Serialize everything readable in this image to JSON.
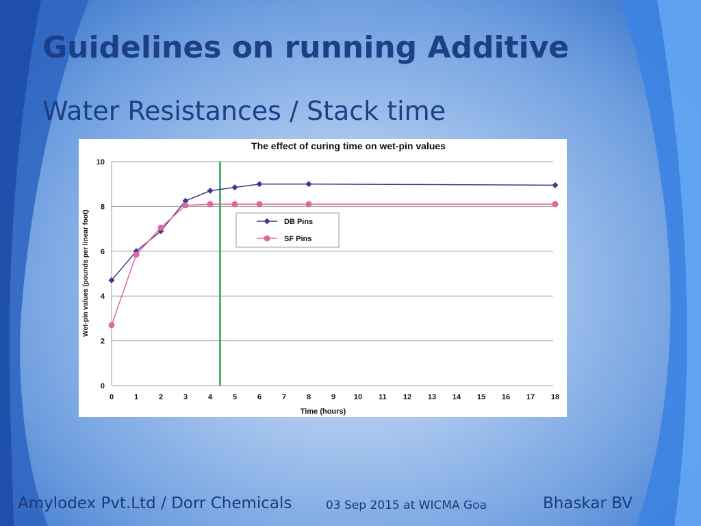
{
  "slide": {
    "title": "Guidelines on running Additive",
    "subtitle": "Water Resistances / Stack time"
  },
  "footer": {
    "company": "Amylodex Pvt.Ltd  / Dorr Chemicals",
    "event": "03 Sep 2015 at WICMA  Goa",
    "author": "Bhaskar BV"
  },
  "colors": {
    "title": "#1c3f86",
    "series_db": "#3b3a8c",
    "series_sf": "#e0669b",
    "marker_line": "#2aa44a"
  },
  "chart_data": {
    "type": "line",
    "title": "The effect of curing time on wet-pin values",
    "xlabel": "Time (hours)",
    "ylabel": "Wet-pin values (pounds per linear foot)",
    "categories": [
      "0",
      "1",
      "2",
      "3",
      "4",
      "5",
      "6",
      "7",
      "8",
      "9",
      "10",
      "11",
      "12",
      "13",
      "14",
      "15",
      "16",
      "17",
      "18"
    ],
    "yticks": [
      "0",
      "2",
      "4",
      "6",
      "8",
      "10"
    ],
    "ylim": [
      0,
      10
    ],
    "grid": true,
    "legend_placement": "upper-left inside plot",
    "vertical_marker_x": 4.4,
    "series": [
      {
        "name": "DB Pins",
        "x": [
          0,
          1,
          2,
          3,
          4,
          5,
          6,
          8,
          18
        ],
        "values": [
          4.7,
          6.0,
          6.9,
          8.25,
          8.7,
          8.85,
          9.0,
          9.0,
          8.95
        ]
      },
      {
        "name": "SF Pins",
        "x": [
          0,
          1,
          2,
          3,
          4,
          5,
          6,
          8,
          18
        ],
        "values": [
          2.7,
          5.85,
          7.05,
          8.05,
          8.1,
          8.1,
          8.1,
          8.1,
          8.1
        ]
      }
    ]
  }
}
